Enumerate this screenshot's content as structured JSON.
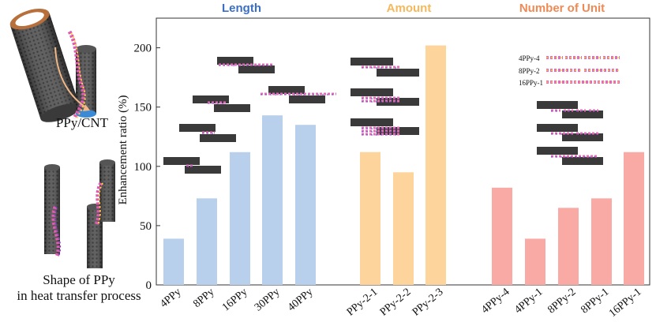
{
  "left_panel": {
    "top_caption": "PPy/CNT",
    "bottom_caption_line1": "Shape of PPy",
    "bottom_caption_line2": "in heat transfer process"
  },
  "chart_data": {
    "type": "bar",
    "ylabel": "Enhancement ratio (%)",
    "ylim": [
      0,
      225
    ],
    "yticks": [
      0,
      50,
      100,
      150,
      200
    ],
    "groups": [
      {
        "title": "Length",
        "title_color": "#3b6fc4",
        "bar_color": "#b9d0ec",
        "categories": [
          "4PPy",
          "8PPy",
          "16PPy",
          "30PPy",
          "40PPy"
        ],
        "values": [
          39,
          73,
          112,
          143,
          135
        ]
      },
      {
        "title": "Amount",
        "title_color": "#f5b85a",
        "bar_color": "#fdd59c",
        "categories": [
          "PPy-2-1",
          "PPy-2-2",
          "PPy-2-3"
        ],
        "values": [
          112,
          95,
          202
        ]
      },
      {
        "title": "Number of Unit",
        "title_color": "#f08a55",
        "bar_color": "#f9aaa5",
        "categories": [
          "4PPy-4",
          "4PPy-1",
          "8PPy-2",
          "8PPy-1",
          "16PPy-1"
        ],
        "values": [
          82,
          39,
          65,
          73,
          112
        ]
      }
    ],
    "inset_legend": [
      "4PPy-4",
      "8PPy-2",
      "16PPy-1"
    ]
  }
}
